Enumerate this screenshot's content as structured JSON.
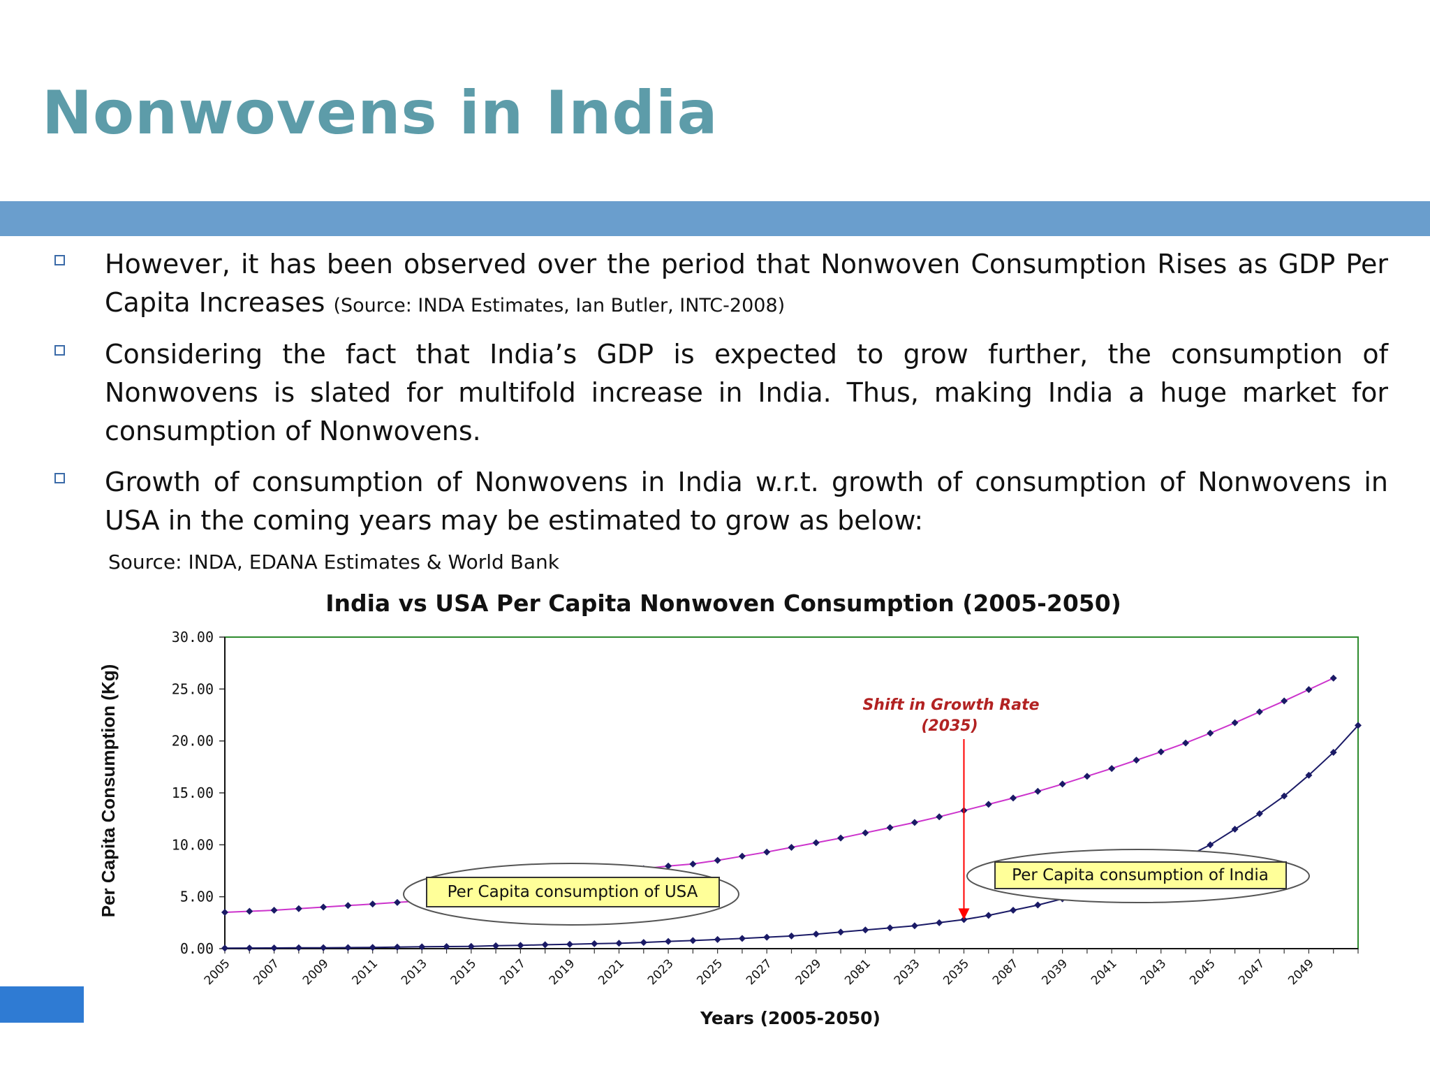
{
  "slide": {
    "title": "Nonwovens in India",
    "bullets": [
      {
        "text": "However, it has been observed over the period that Nonwoven Consumption Rises as GDP Per Capita Increases",
        "source": "(Source: INDA Estimates, Ian Butler, INTC-2008)"
      },
      {
        "text": "Considering the fact that India’s GDP is expected to grow further, the consumption of Nonwovens is slated for multifold increase in India. Thus, making India a huge market for consumption of Nonwovens.",
        "source": ""
      },
      {
        "text": "Growth of consumption of Nonwovens in India w.r.t. growth of consumption of Nonwovens in USA in the coming years may be estimated to grow as below:",
        "source": ""
      }
    ],
    "source_line": "Source: INDA, EDANA Estimates & World Bank"
  },
  "colors": {
    "title": "#5d9ca9",
    "header_bar": "#6a9ecd",
    "corner_block": "#2f7bd3",
    "usa_line": "#cc33cc",
    "india_line": "#1a1a66",
    "marker": "#1a1a66",
    "plot_border": "#2e8b2e",
    "callout_box": "#ffff99",
    "annotation": "#b22222",
    "arrow": "#ff0000"
  },
  "chart_data": {
    "type": "line",
    "title": "India vs USA Per Capita Nonwoven Consumption (2005-2050)",
    "xlabel": "Years (2005-2050)",
    "ylabel": "Per Capita Consumption (Kg)",
    "ylim": [
      0,
      30
    ],
    "yticks": [
      "0.00",
      "5.00",
      "10.00",
      "15.00",
      "20.00",
      "25.00",
      "30.00"
    ],
    "xlim": [
      2005,
      2051
    ],
    "xtick_labels": [
      "2005",
      "2007",
      "2009",
      "2011",
      "2013",
      "2015",
      "2017",
      "2019",
      "2021",
      "2023",
      "2025",
      "2027",
      "2029",
      "2081",
      "2033",
      "2035",
      "2087",
      "2039",
      "2041",
      "2043",
      "2045",
      "2047",
      "2049"
    ],
    "grid": false,
    "x": [
      2005,
      2006,
      2007,
      2008,
      2009,
      2010,
      2011,
      2012,
      2013,
      2014,
      2015,
      2016,
      2017,
      2018,
      2019,
      2020,
      2021,
      2022,
      2023,
      2024,
      2025,
      2026,
      2027,
      2028,
      2029,
      2030,
      2031,
      2032,
      2033,
      2034,
      2035,
      2036,
      2037,
      2038,
      2039,
      2040,
      2041,
      2042,
      2043,
      2044,
      2045,
      2046,
      2047,
      2048,
      2049,
      2050,
      2051
    ],
    "series": [
      {
        "name": "Per Capita consumption of USA",
        "values": [
          3.5,
          3.6,
          3.7,
          3.85,
          4.0,
          4.15,
          4.3,
          4.45,
          4.6,
          5.0,
          5.35,
          5.7,
          6.05,
          6.4,
          6.75,
          7.1,
          7.4,
          7.7,
          7.95,
          8.15,
          8.5,
          8.9,
          9.3,
          9.75,
          10.2,
          10.65,
          11.15,
          11.65,
          12.15,
          12.7,
          13.3,
          13.9,
          14.5,
          15.15,
          15.85,
          16.6,
          17.35,
          18.15,
          18.95,
          19.8,
          20.75,
          21.75,
          22.8,
          23.85,
          24.95,
          26.05,
          26.05
        ],
        "plotted_points": 46
      },
      {
        "name": "Per Capita consumption of India",
        "values": [
          0.05,
          0.06,
          0.07,
          0.08,
          0.09,
          0.1,
          0.12,
          0.15,
          0.18,
          0.2,
          0.22,
          0.28,
          0.32,
          0.38,
          0.42,
          0.48,
          0.52,
          0.6,
          0.7,
          0.78,
          0.88,
          0.98,
          1.1,
          1.22,
          1.4,
          1.6,
          1.8,
          2.0,
          2.2,
          2.5,
          2.8,
          3.2,
          3.7,
          4.2,
          4.8,
          5.4,
          6.1,
          6.9,
          7.8,
          8.8,
          10.0,
          11.5,
          13.0,
          14.7,
          16.7,
          18.9,
          21.5
        ],
        "plotted_points": 47
      }
    ],
    "annotations": [
      {
        "text_line1": "Shift in Growth Rate",
        "text_line2": "(2035)",
        "x": 2035,
        "target_y": 2.8
      }
    ],
    "callouts": [
      {
        "text": "Per Capita consumption of USA"
      },
      {
        "text": "Per Capita consumption of India"
      }
    ]
  }
}
